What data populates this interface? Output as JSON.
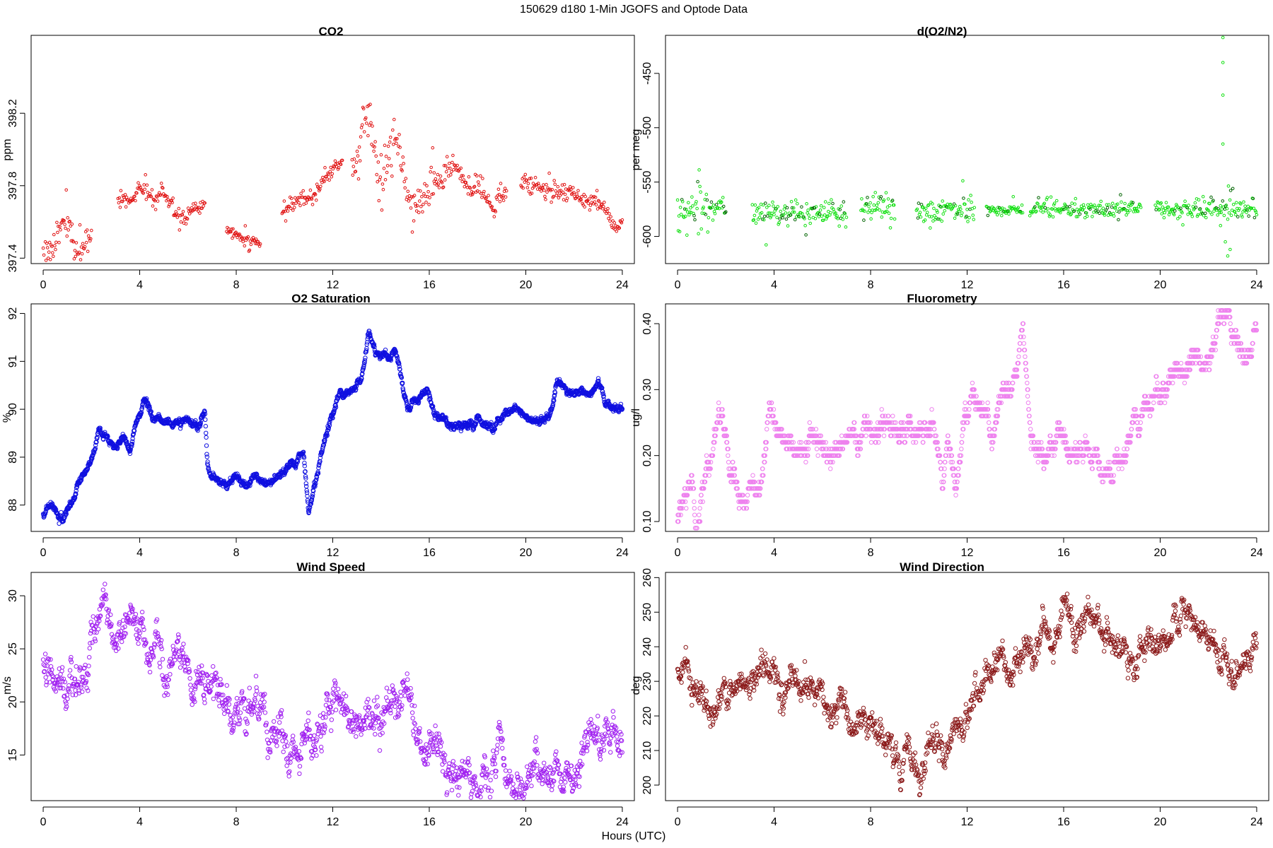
{
  "figure": {
    "title": "150629   d180   1-Min  JGOFS and Optode Data",
    "xlabel": "Hours (UTC)"
  },
  "chart_data": [
    {
      "type": "scatter",
      "title": "CO2",
      "ylabel": "ppm",
      "color": "#e01010",
      "marker_size": 1.8,
      "xlim": [
        -0.5,
        24.5
      ],
      "ylim": [
        397.37,
        398.63
      ],
      "xticks": [
        0,
        4,
        8,
        12,
        16,
        20,
        24
      ],
      "yticks": [
        397.4,
        397.8,
        398.2
      ],
      "ytick_labels": [
        "397.4",
        "397.8",
        "398.2"
      ],
      "gaps": [
        [
          2.0,
          3.1
        ],
        [
          7.4,
          7.6
        ],
        [
          9.0,
          9.9
        ]
      ],
      "segments": [
        {
          "x0": 0.0,
          "x1": 2.0,
          "y0": 397.43,
          "y1": 397.52,
          "jitter": 0.07,
          "bumps": [
            [
              0.9,
              0.12
            ],
            [
              1.5,
              -0.08
            ]
          ]
        },
        {
          "x0": 3.1,
          "x1": 6.7,
          "y0": 397.72,
          "y1": 397.68,
          "jitter": 0.04,
          "bumps": [
            [
              4.1,
              0.07
            ],
            [
              4.9,
              0.06
            ],
            [
              5.7,
              -0.08
            ]
          ]
        },
        {
          "x0": 7.6,
          "x1": 9.0,
          "y0": 397.55,
          "y1": 397.48,
          "jitter": 0.03,
          "bumps": []
        },
        {
          "x0": 9.9,
          "x1": 12.4,
          "y0": 397.65,
          "y1": 397.93,
          "jitter": 0.04,
          "bumps": [
            [
              11.2,
              -0.05
            ]
          ]
        },
        {
          "x0": 12.8,
          "x1": 16.2,
          "y0": 397.85,
          "y1": 397.78,
          "jitter": 0.12,
          "bumps": [
            [
              13.4,
              0.35
            ],
            [
              14.6,
              0.25
            ],
            [
              15.4,
              -0.12
            ]
          ]
        },
        {
          "x0": 16.2,
          "x1": 19.2,
          "y0": 397.82,
          "y1": 397.78,
          "jitter": 0.05,
          "bumps": [
            [
              17.0,
              0.12
            ],
            [
              18.6,
              -0.1
            ]
          ]
        },
        {
          "x0": 19.8,
          "x1": 24.0,
          "y0": 397.82,
          "y1": 397.66,
          "jitter": 0.04,
          "bumps": [
            [
              21.8,
              0.03
            ],
            [
              23.7,
              -0.1
            ]
          ]
        }
      ]
    },
    {
      "type": "scatter",
      "title": "d(O2/N2)",
      "ylabel": "per meg",
      "color": "#10e010",
      "dark_color": "#006400",
      "marker_size": 1.8,
      "xlim": [
        -0.5,
        24.5
      ],
      "ylim": [
        -625,
        -415
      ],
      "xticks": [
        0,
        4,
        8,
        12,
        16,
        20,
        24
      ],
      "yticks": [
        -600,
        -550,
        -500,
        -450
      ],
      "ytick_labels": [
        "-600",
        "-550",
        "-500",
        "-450"
      ],
      "gaps": [
        [
          2.0,
          3.1
        ],
        [
          7.0,
          7.6
        ],
        [
          9.0,
          9.9
        ]
      ],
      "segments": [
        {
          "x0": 0.0,
          "x1": 2.0,
          "y0": -575,
          "y1": -572,
          "jitter": 14,
          "bumps": []
        },
        {
          "x0": 3.1,
          "x1": 7.0,
          "y0": -578,
          "y1": -578,
          "jitter": 10,
          "bumps": []
        },
        {
          "x0": 7.6,
          "x1": 9.0,
          "y0": -570,
          "y1": -575,
          "jitter": 12,
          "bumps": []
        },
        {
          "x0": 9.9,
          "x1": 12.3,
          "y0": -578,
          "y1": -575,
          "jitter": 11,
          "bumps": []
        },
        {
          "x0": 12.8,
          "x1": 14.3,
          "y0": -575,
          "y1": -577,
          "jitter": 5,
          "bumps": []
        },
        {
          "x0": 14.6,
          "x1": 19.2,
          "y0": -576,
          "y1": -574,
          "jitter": 7,
          "bumps": []
        },
        {
          "x0": 19.8,
          "x1": 24.0,
          "y0": -575,
          "y1": -575,
          "jitter": 9,
          "bumps": []
        }
      ],
      "extra_points": [
        [
          22.6,
          -417
        ],
        [
          22.6,
          -440
        ],
        [
          22.6,
          -470
        ],
        [
          22.6,
          -515
        ],
        [
          22.7,
          -605
        ],
        [
          22.9,
          -612
        ],
        [
          22.8,
          -618
        ],
        [
          22.5,
          -590
        ]
      ]
    },
    {
      "type": "scatter",
      "title": "O2 Saturation",
      "ylabel": "%",
      "color": "#1010e0",
      "marker_size": 2.7,
      "xlim": [
        -0.5,
        24.5
      ],
      "ylim": [
        87.45,
        92.2
      ],
      "xticks": [
        0,
        4,
        8,
        12,
        16,
        20,
        24
      ],
      "yticks": [
        88,
        89,
        90,
        91,
        92
      ],
      "ytick_labels": [
        "88",
        "89",
        "90",
        "91",
        "92"
      ],
      "gaps": [],
      "curve": [
        [
          0,
          87.85
        ],
        [
          0.5,
          88.0
        ],
        [
          0.8,
          87.65
        ],
        [
          1.2,
          88.1
        ],
        [
          1.6,
          88.6
        ],
        [
          2.0,
          88.9
        ],
        [
          2.3,
          89.5
        ],
        [
          2.7,
          89.3
        ],
        [
          3.0,
          89.2
        ],
        [
          3.3,
          89.5
        ],
        [
          3.6,
          89.2
        ],
        [
          3.9,
          89.8
        ],
        [
          4.2,
          90.2
        ],
        [
          4.6,
          89.7
        ],
        [
          5.0,
          89.8
        ],
        [
          5.5,
          89.7
        ],
        [
          6.0,
          89.8
        ],
        [
          6.4,
          89.6
        ],
        [
          6.7,
          89.9
        ],
        [
          6.8,
          88.8
        ],
        [
          7.2,
          88.6
        ],
        [
          7.6,
          88.35
        ],
        [
          8.0,
          88.6
        ],
        [
          8.4,
          88.4
        ],
        [
          8.8,
          88.6
        ],
        [
          9.3,
          88.4
        ],
        [
          9.8,
          88.7
        ],
        [
          10.3,
          88.9
        ],
        [
          10.8,
          89.0
        ],
        [
          11.0,
          87.75
        ],
        [
          11.2,
          88.3
        ],
        [
          11.5,
          89.0
        ],
        [
          11.8,
          89.6
        ],
        [
          12.2,
          90.2
        ],
        [
          12.8,
          90.4
        ],
        [
          13.2,
          90.6
        ],
        [
          13.5,
          91.7
        ],
        [
          13.8,
          91.2
        ],
        [
          14.3,
          91.0
        ],
        [
          14.6,
          91.2
        ],
        [
          14.9,
          90.6
        ],
        [
          15.1,
          90.0
        ],
        [
          15.5,
          90.2
        ],
        [
          15.9,
          90.5
        ],
        [
          16.2,
          89.9
        ],
        [
          16.6,
          89.8
        ],
        [
          17.0,
          89.6
        ],
        [
          18.0,
          89.7
        ],
        [
          18.6,
          89.6
        ],
        [
          19.0,
          89.9
        ],
        [
          19.5,
          90.0
        ],
        [
          20.0,
          89.8
        ],
        [
          20.5,
          89.7
        ],
        [
          21.0,
          89.9
        ],
        [
          21.3,
          90.6
        ],
        [
          21.7,
          90.4
        ],
        [
          22.2,
          90.4
        ],
        [
          22.7,
          90.3
        ],
        [
          23.0,
          90.55
        ],
        [
          23.3,
          90.1
        ],
        [
          24.0,
          90.0
        ]
      ],
      "jitter": 0.06
    },
    {
      "type": "scatter",
      "title": "Fluorometry",
      "ylabel": "ug/l",
      "color": "#ee82ee",
      "marker_size": 2.7,
      "xlim": [
        -0.5,
        24.5
      ],
      "ylim": [
        0.085,
        0.43
      ],
      "xticks": [
        0,
        4,
        8,
        12,
        16,
        20,
        24
      ],
      "yticks": [
        0.1,
        0.2,
        0.3,
        0.4
      ],
      "ytick_labels": [
        "0.10",
        "0.20",
        "0.30",
        "0.40"
      ],
      "gaps": [],
      "quantum": 0.01,
      "curve": [
        [
          0,
          0.11
        ],
        [
          0.3,
          0.13
        ],
        [
          0.6,
          0.15
        ],
        [
          0.75,
          0.09
        ],
        [
          1.0,
          0.15
        ],
        [
          1.3,
          0.18
        ],
        [
          1.7,
          0.25
        ],
        [
          2.0,
          0.25
        ],
        [
          2.2,
          0.17
        ],
        [
          2.5,
          0.13
        ],
        [
          3.0,
          0.13
        ],
        [
          3.4,
          0.15
        ],
        [
          3.6,
          0.2
        ],
        [
          3.8,
          0.29
        ],
        [
          4.2,
          0.24
        ],
        [
          4.6,
          0.22
        ],
        [
          5.0,
          0.2
        ],
        [
          5.5,
          0.22
        ],
        [
          6.0,
          0.22
        ],
        [
          6.5,
          0.21
        ],
        [
          7.0,
          0.23
        ],
        [
          8.0,
          0.24
        ],
        [
          9.0,
          0.24
        ],
        [
          10.0,
          0.23
        ],
        [
          10.7,
          0.23
        ],
        [
          11.0,
          0.15
        ],
        [
          11.2,
          0.22
        ],
        [
          11.6,
          0.15
        ],
        [
          11.9,
          0.26
        ],
        [
          12.2,
          0.3
        ],
        [
          12.6,
          0.29
        ],
        [
          13.0,
          0.24
        ],
        [
          13.5,
          0.3
        ],
        [
          14.0,
          0.32
        ],
        [
          14.3,
          0.38
        ],
        [
          14.6,
          0.25
        ],
        [
          15.0,
          0.2
        ],
        [
          15.4,
          0.21
        ],
        [
          15.8,
          0.22
        ],
        [
          16.4,
          0.19
        ],
        [
          17.2,
          0.19
        ],
        [
          18.0,
          0.18
        ],
        [
          18.6,
          0.21
        ],
        [
          19.0,
          0.25
        ],
        [
          19.5,
          0.28
        ],
        [
          20.0,
          0.29
        ],
        [
          20.5,
          0.33
        ],
        [
          21.0,
          0.34
        ],
        [
          22.0,
          0.34
        ],
        [
          22.5,
          0.42
        ],
        [
          23.0,
          0.39
        ],
        [
          23.5,
          0.35
        ],
        [
          24.0,
          0.38
        ]
      ],
      "jitter": 0.012
    },
    {
      "type": "scatter",
      "title": "Wind Speed",
      "ylabel": "m/s",
      "color": "#a020f0",
      "marker_size": 2.7,
      "xlim": [
        -0.5,
        24.5
      ],
      "ylim": [
        10.7,
        32.2
      ],
      "xticks": [
        0,
        4,
        8,
        12,
        16,
        20,
        24
      ],
      "yticks": [
        15,
        20,
        25,
        30
      ],
      "ytick_labels": [
        "15",
        "20",
        "25",
        "30"
      ],
      "gaps": [],
      "sample_step": 0.018,
      "curve": [
        [
          0,
          23.0
        ],
        [
          0.5,
          20.5
        ],
        [
          1.0,
          20.0
        ],
        [
          1.5,
          22.0
        ],
        [
          2.0,
          25.0
        ],
        [
          2.5,
          28.0
        ],
        [
          3.0,
          27.0
        ],
        [
          3.5,
          26.0
        ],
        [
          4.0,
          26.0
        ],
        [
          4.5,
          25.0
        ],
        [
          5.0,
          24.0
        ],
        [
          5.5,
          25.0
        ],
        [
          6.0,
          24.0
        ],
        [
          6.5,
          23.0
        ],
        [
          7.0,
          21.0
        ],
        [
          7.5,
          20.0
        ],
        [
          8.0,
          21.0
        ],
        [
          8.5,
          18.0
        ],
        [
          9.0,
          19.0
        ],
        [
          9.5,
          17.0
        ],
        [
          10.0,
          17.0
        ],
        [
          10.5,
          16.5
        ],
        [
          11.0,
          17.0
        ],
        [
          11.5,
          17.0
        ],
        [
          12.0,
          19.0
        ],
        [
          12.5,
          20.0
        ],
        [
          13.0,
          17.0
        ],
        [
          13.5,
          19.0
        ],
        [
          14.0,
          18.0
        ],
        [
          14.5,
          20.0
        ],
        [
          15.0,
          20.0
        ],
        [
          15.5,
          18.0
        ],
        [
          16.0,
          16.0
        ],
        [
          16.5,
          16.0
        ],
        [
          17.0,
          14.0
        ],
        [
          17.5,
          14.0
        ],
        [
          18.0,
          14.0
        ],
        [
          18.5,
          14.0
        ],
        [
          19.0,
          13.5
        ],
        [
          19.5,
          13.0
        ],
        [
          20.0,
          12.5
        ],
        [
          20.5,
          13.0
        ],
        [
          21.0,
          12.5
        ],
        [
          21.5,
          13.0
        ],
        [
          22.0,
          15.0
        ],
        [
          22.5,
          16.0
        ],
        [
          23.0,
          17.0
        ],
        [
          23.5,
          17.5
        ],
        [
          24.0,
          18.0
        ]
      ],
      "jitter": 1.4
    },
    {
      "type": "scatter",
      "title": "Wind Direction",
      "ylabel": "deg",
      "color": "#8b1a1a",
      "marker_size": 2.7,
      "xlim": [
        -0.5,
        24.5
      ],
      "ylim": [
        195.5,
        261.5
      ],
      "xticks": [
        0,
        4,
        8,
        12,
        16,
        20,
        24
      ],
      "yticks": [
        200,
        210,
        220,
        230,
        240,
        250,
        260
      ],
      "ytick_labels": [
        "200",
        "210",
        "220",
        "230",
        "240",
        "250",
        "260"
      ],
      "gaps": [],
      "sample_step": 0.018,
      "curve": [
        [
          0,
          232
        ],
        [
          0.5,
          229
        ],
        [
          1.0,
          225
        ],
        [
          1.5,
          222
        ],
        [
          2.0,
          229
        ],
        [
          2.5,
          229
        ],
        [
          3.0,
          230
        ],
        [
          3.5,
          232
        ],
        [
          4.0,
          229
        ],
        [
          4.5,
          228
        ],
        [
          5.0,
          230
        ],
        [
          5.5,
          226
        ],
        [
          6.0,
          226
        ],
        [
          6.5,
          224
        ],
        [
          7.0,
          220
        ],
        [
          7.5,
          218
        ],
        [
          8.0,
          217
        ],
        [
          8.5,
          214
        ],
        [
          9.0,
          213
        ],
        [
          9.5,
          212
        ],
        [
          10.0,
          205
        ],
        [
          10.5,
          210
        ],
        [
          11.0,
          208
        ],
        [
          11.5,
          212
        ],
        [
          12.0,
          222
        ],
        [
          12.5,
          226
        ],
        [
          13.0,
          230
        ],
        [
          13.5,
          235
        ],
        [
          14.0,
          238
        ],
        [
          14.5,
          238
        ],
        [
          15.0,
          241
        ],
        [
          15.5,
          245
        ],
        [
          16.0,
          249
        ],
        [
          16.5,
          244
        ],
        [
          17.0,
          246
        ],
        [
          17.5,
          246
        ],
        [
          18.0,
          243
        ],
        [
          18.5,
          241
        ],
        [
          19.0,
          240
        ],
        [
          19.5,
          242
        ],
        [
          20.0,
          245
        ],
        [
          20.5,
          250
        ],
        [
          21.0,
          250
        ],
        [
          21.5,
          243
        ],
        [
          22.0,
          237
        ],
        [
          22.5,
          236
        ],
        [
          23.0,
          235
        ],
        [
          23.5,
          238
        ],
        [
          24.0,
          240
        ]
      ],
      "jitter": 3.5
    }
  ]
}
